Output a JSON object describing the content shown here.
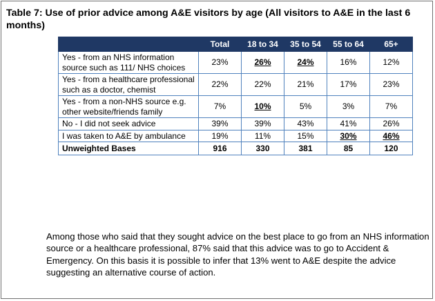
{
  "caption": "Table 7:  Use of prior advice among A&E visitors by age (All visitors to A&E in the last 6 months)",
  "table": {
    "headers": [
      "",
      "Total",
      "18 to 34",
      "35 to 54",
      "55 to 64",
      "65+"
    ],
    "rows": [
      {
        "label": "Yes - from an NHS information source such as 111/ NHS choices",
        "values": [
          "23%",
          "26%",
          "24%",
          "16%",
          "12%"
        ]
      },
      {
        "label": "Yes - from a healthcare professional such as a doctor, chemist",
        "values": [
          "22%",
          "22%",
          "21%",
          "17%",
          "23%"
        ]
      },
      {
        "label": "Yes - from a non-NHS source e.g. other website/friends family",
        "values": [
          "7%",
          "10%",
          "5%",
          "3%",
          "7%"
        ]
      },
      {
        "label": "No - I did not seek advice",
        "values": [
          "39%",
          "39%",
          "43%",
          "41%",
          "26%"
        ]
      },
      {
        "label": "I was taken to A&E by ambulance",
        "values": [
          "19%",
          "11%",
          "15%",
          "30%",
          "46%"
        ]
      }
    ],
    "base": {
      "label": "Unweighted Bases",
      "values": [
        "916",
        "330",
        "381",
        "85",
        "120"
      ]
    }
  },
  "note": "Among those who said that they sought advice on the best place to go from an NHS information source or a healthcare professional, 87% said that this advice was to go to Accident & Emergency. On this basis it is possible to infer that 13% went to A&E despite the advice suggesting an alternative course of action."
}
